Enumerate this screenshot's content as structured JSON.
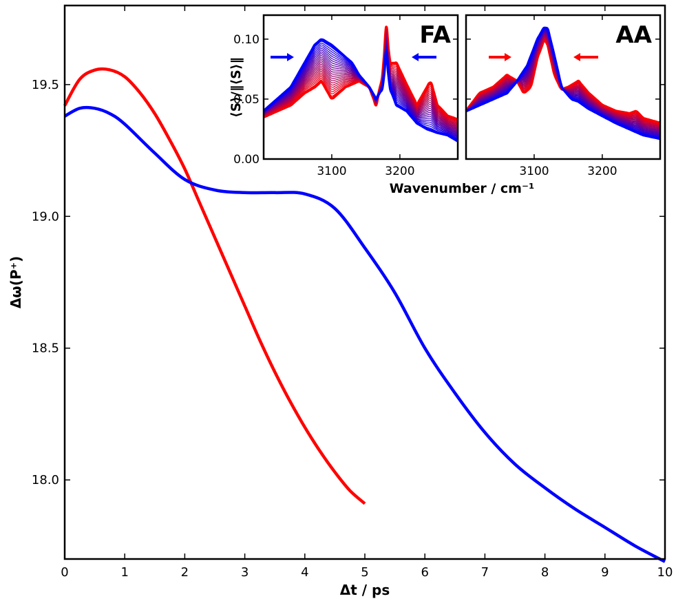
{
  "chart_data": [
    {
      "type": "line",
      "xlabel": "Δt / ps",
      "ylabel": "Δω(P⁺)",
      "xlim": [
        0,
        10
      ],
      "ylim": [
        17.7,
        19.8
      ],
      "xticks": [
        "0",
        "1",
        "2",
        "3",
        "4",
        "5",
        "6",
        "7",
        "8",
        "9",
        "10"
      ],
      "yticks": [
        "18.0",
        "18.5",
        "19.0",
        "19.5"
      ],
      "series": [
        {
          "color": "#ff0000",
          "x": [
            0,
            0.25,
            0.5,
            0.75,
            1.0,
            1.25,
            1.5,
            1.75,
            2.0,
            2.25,
            2.5,
            2.75,
            3.0,
            3.25,
            3.5,
            3.75,
            4.0,
            4.25,
            4.5,
            4.75,
            5.0
          ],
          "y": [
            19.42,
            19.52,
            19.555,
            19.556,
            19.53,
            19.47,
            19.39,
            19.29,
            19.18,
            19.05,
            18.92,
            18.79,
            18.66,
            18.53,
            18.41,
            18.3,
            18.2,
            18.11,
            18.03,
            17.96,
            17.91
          ]
        },
        {
          "color": "#0000ff",
          "x": [
            0,
            0.25,
            0.5,
            0.75,
            1.0,
            1.5,
            2.0,
            2.5,
            3.0,
            3.5,
            4.0,
            4.5,
            5.0,
            5.5,
            6.0,
            6.5,
            7.0,
            7.5,
            8.0,
            8.5,
            9.0,
            9.5,
            10.0
          ],
          "y": [
            19.38,
            19.41,
            19.41,
            19.39,
            19.35,
            19.24,
            19.14,
            19.1,
            19.09,
            19.09,
            19.085,
            19.03,
            18.88,
            18.71,
            18.5,
            18.33,
            18.18,
            18.06,
            17.97,
            17.89,
            17.82,
            17.75,
            17.69
          ]
        }
      ]
    },
    {
      "type": "line",
      "panel_label": "FA",
      "xlabel": "Wavenumber / cm⁻¹",
      "ylabel": "⟨S⟩/‖⟨S⟩‖",
      "xlim": [
        3000,
        3285
      ],
      "ylim": [
        0,
        0.12
      ],
      "xticks": [
        "3100",
        "3200"
      ],
      "yticks": [
        "0.00",
        "0.05",
        "0.10"
      ],
      "arrow_colors": [
        "#0000ff",
        "#0000ff"
      ],
      "series": [
        {
          "color": "#ff0000",
          "x": [
            3000,
            3020,
            3040,
            3060,
            3075,
            3085,
            3100,
            3120,
            3140,
            3155,
            3165,
            3175,
            3180,
            3185,
            3195,
            3210,
            3225,
            3235,
            3245,
            3255,
            3270,
            3285
          ],
          "y": [
            0.035,
            0.04,
            0.045,
            0.055,
            0.06,
            0.065,
            0.05,
            0.06,
            0.065,
            0.06,
            0.045,
            0.07,
            0.11,
            0.08,
            0.08,
            0.062,
            0.045,
            0.055,
            0.065,
            0.045,
            0.036,
            0.033
          ]
        },
        {
          "color": "#0000ff",
          "x": [
            3000,
            3020,
            3040,
            3060,
            3075,
            3085,
            3100,
            3120,
            3130,
            3140,
            3155,
            3165,
            3175,
            3180,
            3185,
            3195,
            3210,
            3225,
            3240,
            3255,
            3270,
            3285
          ],
          "y": [
            0.04,
            0.05,
            0.06,
            0.08,
            0.095,
            0.1,
            0.095,
            0.085,
            0.08,
            0.07,
            0.06,
            0.05,
            0.06,
            0.09,
            0.06,
            0.045,
            0.04,
            0.03,
            0.025,
            0.022,
            0.02,
            0.015
          ]
        }
      ]
    },
    {
      "type": "line",
      "panel_label": "AA",
      "xlabel": "Wavenumber / cm⁻¹",
      "xlim": [
        3000,
        3285
      ],
      "ylim": [
        0,
        0.12
      ],
      "xticks": [
        "3100",
        "3200"
      ],
      "arrow_colors": [
        "#ff0000",
        "#ff0000"
      ],
      "series": [
        {
          "color": "#ff0000",
          "x": [
            3000,
            3020,
            3040,
            3060,
            3075,
            3085,
            3095,
            3105,
            3115,
            3120,
            3130,
            3140,
            3150,
            3165,
            3180,
            3200,
            3220,
            3240,
            3250,
            3260,
            3285
          ],
          "y": [
            0.04,
            0.055,
            0.06,
            0.07,
            0.065,
            0.055,
            0.06,
            0.085,
            0.1,
            0.095,
            0.07,
            0.058,
            0.06,
            0.065,
            0.055,
            0.045,
            0.04,
            0.038,
            0.04,
            0.034,
            0.03
          ]
        },
        {
          "color": "#0000ff",
          "x": [
            3000,
            3020,
            3040,
            3060,
            3075,
            3090,
            3105,
            3115,
            3120,
            3130,
            3140,
            3155,
            3165,
            3180,
            3200,
            3220,
            3240,
            3260,
            3285
          ],
          "y": [
            0.04,
            0.045,
            0.05,
            0.055,
            0.065,
            0.078,
            0.1,
            0.11,
            0.108,
            0.085,
            0.06,
            0.05,
            0.048,
            0.042,
            0.036,
            0.03,
            0.025,
            0.02,
            0.017
          ]
        }
      ]
    }
  ]
}
